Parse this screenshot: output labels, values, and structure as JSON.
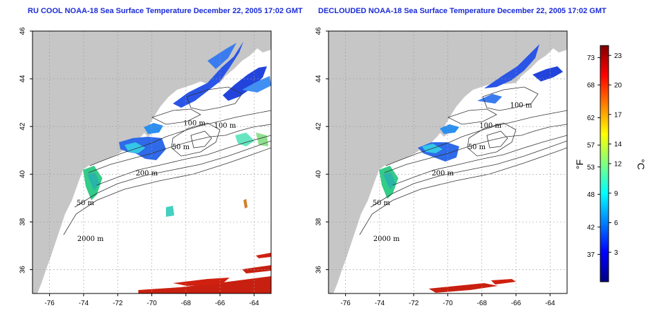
{
  "panels": [
    {
      "id": "left",
      "title": "RU COOL NOAA-18 Sea Surface Temperature December 22, 2005 17:02 GMT",
      "contours": [
        {
          "label": "100 m",
          "lon": -65.7,
          "lat": 41.95
        },
        {
          "label": "100 m",
          "lon": -67.5,
          "lat": 42.05
        },
        {
          "label": "50 m",
          "lon": -68.3,
          "lat": 41.05
        },
        {
          "label": "200 m",
          "lon": -70.3,
          "lat": 39.95
        },
        {
          "label": "50 m",
          "lon": -73.9,
          "lat": 38.7
        },
        {
          "label": "2000 m",
          "lon": -73.6,
          "lat": 37.2
        }
      ]
    },
    {
      "id": "right",
      "title": "DECLOUDED NOAA-18 Sea Surface Temperature December 22, 2005 17:02 GMT",
      "contours": [
        {
          "label": "100 m",
          "lon": -65.7,
          "lat": 42.8
        },
        {
          "label": "100 m",
          "lon": -67.5,
          "lat": 41.95
        },
        {
          "label": "50 m",
          "lon": -68.3,
          "lat": 41.05
        },
        {
          "label": "200 m",
          "lon": -70.3,
          "lat": 39.95
        },
        {
          "label": "50 m",
          "lon": -73.9,
          "lat": 38.7
        },
        {
          "label": "2000 m",
          "lon": -73.6,
          "lat": 37.2
        }
      ]
    }
  ],
  "axes": {
    "lon_range": [
      -77,
      -63
    ],
    "lat_range": [
      35,
      46
    ],
    "lon_ticks": [
      -76,
      -74,
      -72,
      -70,
      -68,
      -66,
      -64
    ],
    "lat_ticks": [
      36,
      38,
      40,
      42,
      44,
      46
    ]
  },
  "colorbar": {
    "f_unit": "°F",
    "c_unit": "°C",
    "f_ticks": [
      37,
      42,
      48,
      53,
      57,
      62,
      68,
      73
    ],
    "c_ticks": [
      3,
      6,
      9,
      12,
      14,
      17,
      20,
      23
    ],
    "range_c": [
      0,
      24
    ]
  },
  "colors": {
    "land": "#c6c6c6",
    "ocean": "#ffffff",
    "title": "#1a2bd6",
    "grid": "#999999"
  }
}
